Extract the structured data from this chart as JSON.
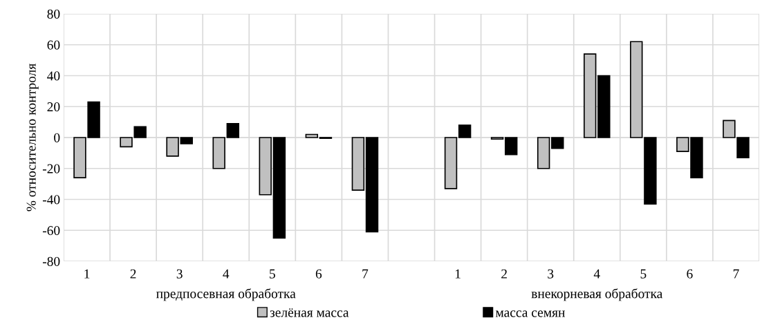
{
  "chart_data": {
    "type": "bar",
    "ylabel": "% относительно контроля",
    "categories": [
      "1",
      "2",
      "3",
      "4",
      "5",
      "6",
      "7",
      null,
      "1",
      "2",
      "3",
      "4",
      "5",
      "6",
      "7"
    ],
    "series": [
      {
        "name": "зелёная масса",
        "color": "#c0c0c0",
        "values": [
          -26,
          -6,
          -12,
          -20,
          -37,
          2,
          -34,
          null,
          -33,
          -1,
          -20,
          54,
          62,
          -9,
          11
        ]
      },
      {
        "name": "масса семян",
        "color": "#000000",
        "values": [
          23,
          7,
          -4,
          9,
          -65,
          -0.5,
          -61,
          null,
          8,
          -11,
          -7,
          40,
          -43,
          -26,
          -13
        ]
      }
    ],
    "annotations": [
      "предпосевная обработка",
      "внекорневая обработка"
    ],
    "ylim": [
      -80,
      80
    ],
    "yticks": [
      -80,
      -60,
      -40,
      -20,
      0,
      20,
      40,
      60,
      80
    ],
    "grid": true,
    "legend": "bottom"
  }
}
